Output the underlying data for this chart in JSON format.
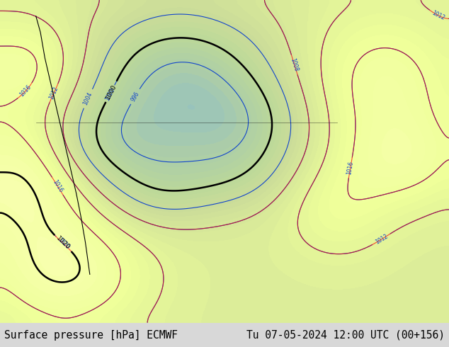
{
  "title_left": "Surface pressure [hPa] ECMWF",
  "title_right": "Tu 07-05-2024 12:00 UTC (00+156)",
  "bg_color": "#ffffff",
  "bottom_bar_color": "#d8d8d8",
  "title_fontsize": 10.5,
  "figsize": [
    6.34,
    4.9
  ],
  "dpi": 100
}
